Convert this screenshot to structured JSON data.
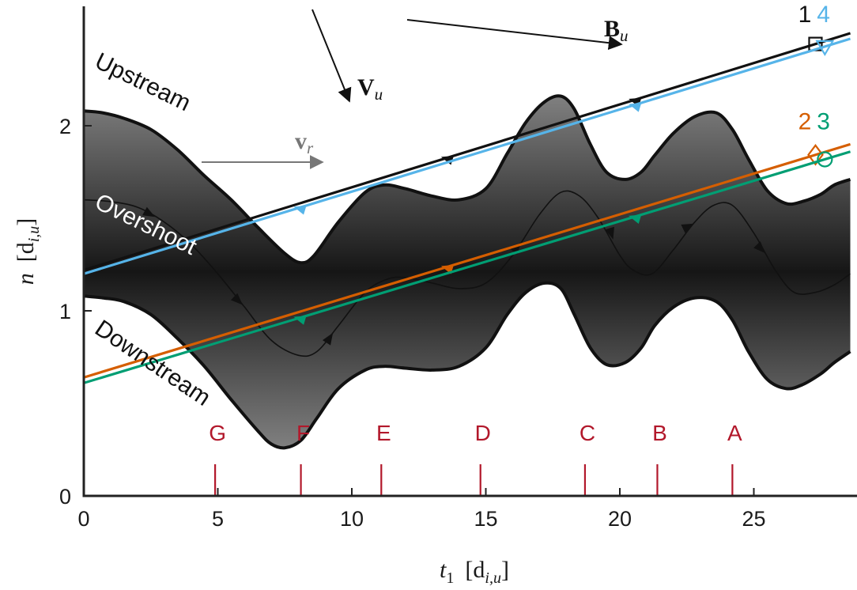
{
  "chart_data": {
    "type": "line",
    "xlabel": {
      "main": "t",
      "sub": "1",
      "unit": "[d",
      "unit_sub": "i,u",
      "unit_close": "]"
    },
    "ylabel": {
      "main": "n",
      "unit": "[d",
      "unit_sub": "i,u",
      "unit_close": "]"
    },
    "xlim": [
      0,
      28.6
    ],
    "ylim": [
      0,
      2.65
    ],
    "xticks": [
      0,
      5,
      10,
      15,
      20,
      25
    ],
    "xtick_labels": [
      "0",
      "5",
      "10",
      "15",
      "20",
      "25"
    ],
    "yticks": [
      0,
      1,
      2
    ],
    "ytick_labels": [
      "0",
      "1",
      "2"
    ],
    "grid": false,
    "band": {
      "upper": {
        "x": [
          0,
          0.7,
          1.5,
          2.5,
          3.5,
          4.5,
          5.5,
          6.5,
          7.5,
          8.1,
          8.6,
          9.5,
          10.5,
          11.2,
          12.0,
          13.0,
          14.0,
          15.0,
          15.8,
          16.5,
          17.2,
          17.8,
          18.3,
          18.9,
          19.5,
          20.2,
          20.8,
          21.3,
          22.0,
          22.8,
          23.6,
          24.2,
          24.8,
          25.5,
          26.2,
          26.8,
          27.5,
          28.0,
          28.6
        ],
        "y": [
          2.08,
          2.07,
          2.04,
          1.98,
          1.87,
          1.73,
          1.6,
          1.45,
          1.31,
          1.26,
          1.3,
          1.48,
          1.64,
          1.68,
          1.66,
          1.62,
          1.6,
          1.66,
          1.85,
          2.02,
          2.13,
          2.16,
          2.09,
          1.9,
          1.75,
          1.71,
          1.75,
          1.84,
          1.96,
          2.05,
          2.07,
          1.98,
          1.82,
          1.65,
          1.58,
          1.59,
          1.63,
          1.68,
          1.71
        ]
      },
      "lower": {
        "x": [
          0,
          0.7,
          1.5,
          2.5,
          3.5,
          4.5,
          5.5,
          6.5,
          7.0,
          7.5,
          8.1,
          8.7,
          9.5,
          10.5,
          11.2,
          12.0,
          13.0,
          14.0,
          15.0,
          15.8,
          16.5,
          17.2,
          17.8,
          18.3,
          18.9,
          19.5,
          20.2,
          20.8,
          21.3,
          22.0,
          22.8,
          23.6,
          24.2,
          24.8,
          25.5,
          26.2,
          26.8,
          27.5,
          28.0,
          28.6
        ],
        "y": [
          1.08,
          1.07,
          1.05,
          0.98,
          0.85,
          0.7,
          0.52,
          0.35,
          0.28,
          0.26,
          0.3,
          0.42,
          0.58,
          0.68,
          0.7,
          0.69,
          0.68,
          0.7,
          0.8,
          0.98,
          1.1,
          1.15,
          1.12,
          0.98,
          0.8,
          0.71,
          0.72,
          0.8,
          0.92,
          1.02,
          1.07,
          1.05,
          0.95,
          0.78,
          0.63,
          0.58,
          0.6,
          0.66,
          0.72,
          0.78
        ]
      },
      "center": {
        "x": [
          0,
          1.0,
          2.0,
          3.0,
          4.0,
          5.0,
          6.0,
          7.0,
          8.0,
          8.7,
          9.5,
          10.5,
          11.3,
          12.0,
          13.0,
          14.0,
          15.0,
          16.0,
          17.0,
          17.8,
          18.5,
          19.2,
          20.0,
          20.5,
          21.2,
          22.0,
          22.8,
          23.5,
          24.2,
          25.0,
          25.8,
          26.5,
          27.3,
          28.0,
          28.6
        ],
        "y": [
          1.6,
          1.59,
          1.56,
          1.48,
          1.36,
          1.2,
          1.02,
          0.84,
          0.76,
          0.78,
          0.92,
          1.1,
          1.17,
          1.18,
          1.15,
          1.12,
          1.15,
          1.3,
          1.52,
          1.64,
          1.62,
          1.5,
          1.3,
          1.22,
          1.2,
          1.33,
          1.48,
          1.57,
          1.57,
          1.42,
          1.22,
          1.1,
          1.1,
          1.14,
          1.2
        ]
      },
      "center_arrows": [
        [
          2.5,
          1.52
        ],
        [
          5.8,
          1.05
        ],
        [
          9.2,
          0.86
        ],
        [
          16.2,
          1.35
        ],
        [
          19.7,
          1.41
        ],
        [
          22.6,
          1.46
        ],
        [
          25.3,
          1.33
        ]
      ]
    },
    "series": [
      {
        "name": "1",
        "x": [
          0,
          28.6
        ],
        "y": [
          1.22,
          2.5
        ],
        "color": "#111111",
        "marker": "square",
        "arrow_x": [
          13.5,
          20.5
        ]
      },
      {
        "name": "4",
        "x": [
          0,
          28.6
        ],
        "y": [
          1.2,
          2.47
        ],
        "color": "#56b4e9",
        "marker": "triangle-down",
        "arrow_x": [
          8.0,
          20.5
        ]
      },
      {
        "name": "2",
        "x": [
          0,
          28.6
        ],
        "y": [
          0.64,
          1.9
        ],
        "color": "#d55e00",
        "marker": "diamond",
        "arrow_x": [
          13.5
        ]
      },
      {
        "name": "3",
        "x": [
          0,
          28.6
        ],
        "y": [
          0.61,
          1.86
        ],
        "color": "#009e73",
        "marker": "circle",
        "arrow_x": [
          8.0,
          20.5
        ]
      }
    ],
    "labels_pairs": [
      {
        "text": "1",
        "series": "1",
        "x": 26.9,
        "y": 2.56
      },
      {
        "text": "4",
        "series": "4",
        "x": 27.6,
        "y": 2.56
      },
      {
        "text": "2",
        "series": "2",
        "x": 26.9,
        "y": 1.98
      },
      {
        "text": "3",
        "series": "3",
        "x": 27.6,
        "y": 1.98
      }
    ],
    "events": [
      {
        "label": "G",
        "x": 4.9
      },
      {
        "label": "F",
        "x": 8.1
      },
      {
        "label": "E",
        "x": 11.1
      },
      {
        "label": "D",
        "x": 14.8
      },
      {
        "label": "C",
        "x": 18.7
      },
      {
        "label": "B",
        "x": 21.4
      },
      {
        "label": "A",
        "x": 24.2
      }
    ],
    "region_labels": {
      "upstream": "Upstream",
      "overshoot": "Overshoot",
      "downstream": "Downstream"
    },
    "vectors": {
      "B": {
        "symbol": "B",
        "sub": "u"
      },
      "V": {
        "symbol": "V",
        "sub": "u"
      },
      "v": {
        "symbol": "v",
        "sub": "r"
      }
    },
    "colors": {
      "event": "#b2182b",
      "vr_arrow": "#777777"
    }
  }
}
